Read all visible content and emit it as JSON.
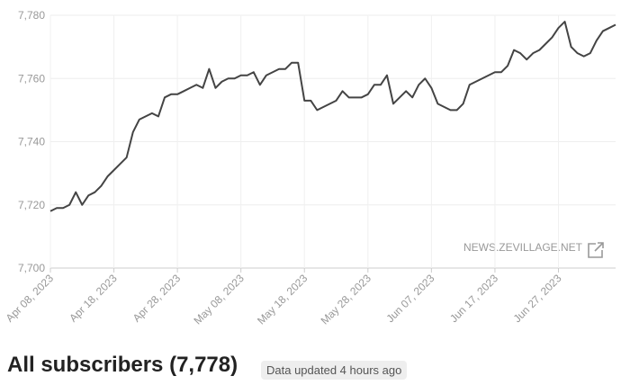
{
  "chart_data": {
    "type": "line",
    "watermark": "NEWS.ZEVILLAGE.NET",
    "x": [
      "2023-04-08",
      "2023-04-09",
      "2023-04-10",
      "2023-04-11",
      "2023-04-12",
      "2023-04-13",
      "2023-04-14",
      "2023-04-15",
      "2023-04-16",
      "2023-04-17",
      "2023-04-18",
      "2023-04-19",
      "2023-04-20",
      "2023-04-21",
      "2023-04-22",
      "2023-04-23",
      "2023-04-24",
      "2023-04-25",
      "2023-04-26",
      "2023-04-27",
      "2023-04-28",
      "2023-04-29",
      "2023-04-30",
      "2023-05-01",
      "2023-05-02",
      "2023-05-03",
      "2023-05-04",
      "2023-05-05",
      "2023-05-06",
      "2023-05-07",
      "2023-05-08",
      "2023-05-09",
      "2023-05-10",
      "2023-05-11",
      "2023-05-12",
      "2023-05-13",
      "2023-05-14",
      "2023-05-15",
      "2023-05-16",
      "2023-05-17",
      "2023-05-18",
      "2023-05-19",
      "2023-05-20",
      "2023-05-21",
      "2023-05-22",
      "2023-05-23",
      "2023-05-24",
      "2023-05-25",
      "2023-05-26",
      "2023-05-27",
      "2023-05-28",
      "2023-05-29",
      "2023-05-30",
      "2023-05-31",
      "2023-06-01",
      "2023-06-02",
      "2023-06-03",
      "2023-06-04",
      "2023-06-05",
      "2023-06-06",
      "2023-06-07",
      "2023-06-08",
      "2023-06-09",
      "2023-06-10",
      "2023-06-11",
      "2023-06-12",
      "2023-06-13",
      "2023-06-14",
      "2023-06-15",
      "2023-06-16",
      "2023-06-17",
      "2023-06-18",
      "2023-06-19",
      "2023-06-20",
      "2023-06-21",
      "2023-06-22",
      "2023-06-23",
      "2023-06-24",
      "2023-06-25",
      "2023-06-26",
      "2023-06-27",
      "2023-06-28",
      "2023-06-29",
      "2023-06-30",
      "2023-07-01",
      "2023-07-02",
      "2023-07-03",
      "2023-07-04",
      "2023-07-05",
      "2023-07-06"
    ],
    "series": [
      {
        "name": "Subscribers",
        "color": "#444444",
        "values": [
          7718,
          7719,
          7719,
          7720,
          7724,
          7720,
          7723,
          7724,
          7726,
          7729,
          7731,
          7733,
          7735,
          7743,
          7747,
          7748,
          7749,
          7748,
          7754,
          7755,
          7755,
          7756,
          7757,
          7758,
          7757,
          7763,
          7757,
          7759,
          7760,
          7760,
          7761,
          7761,
          7762,
          7758,
          7761,
          7762,
          7763,
          7763,
          7765,
          7765,
          7753,
          7753,
          7750,
          7751,
          7752,
          7753,
          7756,
          7754,
          7754,
          7754,
          7755,
          7758,
          7758,
          7761,
          7752,
          7754,
          7756,
          7754,
          7758,
          7760,
          7757,
          7752,
          7751,
          7750,
          7750,
          7752,
          7758,
          7759,
          7760,
          7761,
          7762,
          7762,
          7764,
          7769,
          7768,
          7766,
          7768,
          7769,
          7771,
          7773,
          7776,
          7778,
          7770,
          7768,
          7767,
          7768,
          7772,
          7775,
          7776,
          7777
        ]
      }
    ],
    "xlim": [
      "2023-04-08",
      "2023-07-06"
    ],
    "xticks": [
      {
        "value": "2023-04-08",
        "label": "Apr 08, 2023"
      },
      {
        "value": "2023-04-18",
        "label": "Apr 18, 2023"
      },
      {
        "value": "2023-04-28",
        "label": "Apr 28, 2023"
      },
      {
        "value": "2023-05-08",
        "label": "May 08, 2023"
      },
      {
        "value": "2023-05-18",
        "label": "May 18, 2023"
      },
      {
        "value": "2023-05-28",
        "label": "May 28, 2023"
      },
      {
        "value": "2023-06-07",
        "label": "Jun 07, 2023"
      },
      {
        "value": "2023-06-17",
        "label": "Jun 17, 2023"
      },
      {
        "value": "2023-06-27",
        "label": "Jun 27, 2023"
      }
    ],
    "ylim": [
      7700,
      7780
    ],
    "yticks": [
      {
        "value": 7700,
        "label": "7,700"
      },
      {
        "value": 7720,
        "label": "7,720"
      },
      {
        "value": 7740,
        "label": "7,740"
      },
      {
        "value": 7760,
        "label": "7,760"
      },
      {
        "value": 7780,
        "label": "7,780"
      }
    ],
    "grid": true
  },
  "header": {
    "title": "All subscribers (7,778)",
    "badge": "Data updated 4 hours ago"
  }
}
